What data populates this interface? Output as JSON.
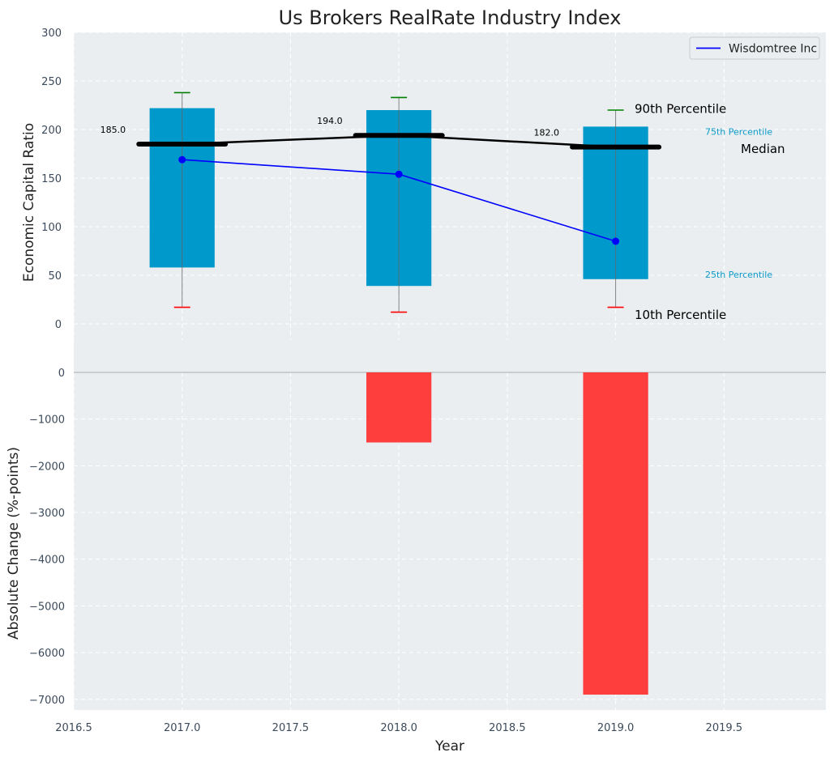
{
  "chart_data": {
    "type": "bar",
    "title": "Us Brokers RealRate Industry Index",
    "xlabel": "Year",
    "xlim": [
      2016.5,
      2019.97
    ],
    "x_ticks": [
      "2016.5",
      "2017.0",
      "2017.5",
      "2018.0",
      "2018.5",
      "2019.0",
      "2019.5"
    ],
    "top_panel": {
      "ylabel": "Economic Capital Ratio",
      "ylim": [
        0,
        300
      ],
      "y_ticks": [
        "0",
        "50",
        "100",
        "150",
        "200",
        "250",
        "300"
      ],
      "years": [
        2017,
        2018,
        2019
      ],
      "p25": [
        58,
        39,
        46
      ],
      "p75": [
        222,
        220,
        203
      ],
      "p10": [
        17,
        12,
        17
      ],
      "p90": [
        238,
        233,
        220
      ],
      "median": [
        185,
        194,
        182
      ],
      "median_labels": [
        "185.0",
        "194.0",
        "182.0"
      ],
      "series": [
        {
          "name": "Wisdomtree Inc",
          "values": [
            169,
            154,
            85
          ]
        }
      ],
      "annotations": {
        "p90": "90th Percentile",
        "p75": "75th Percentile",
        "median": "Median",
        "p25": "25th Percentile",
        "p10": "10th Percentile"
      },
      "legend_position": "top-right"
    },
    "bottom_panel": {
      "ylabel": "Absolute Change (%-points)",
      "ylim": [
        -7200,
        0
      ],
      "y_ticks": [
        "0",
        "−1000",
        "−2000",
        "−3000",
        "−4000",
        "−5000",
        "−6000",
        "−7000"
      ],
      "years": [
        2018,
        2019
      ],
      "values": [
        -1500,
        -6900
      ]
    },
    "colors": {
      "box": "#0099cc",
      "median": "#000000",
      "series": "#0000ff",
      "p90_cap": "#008000",
      "p10_cap": "#ff0000",
      "change_bar": "#ff3333",
      "panel_bg": "#eaeef0",
      "grid": "#ffffff"
    }
  }
}
